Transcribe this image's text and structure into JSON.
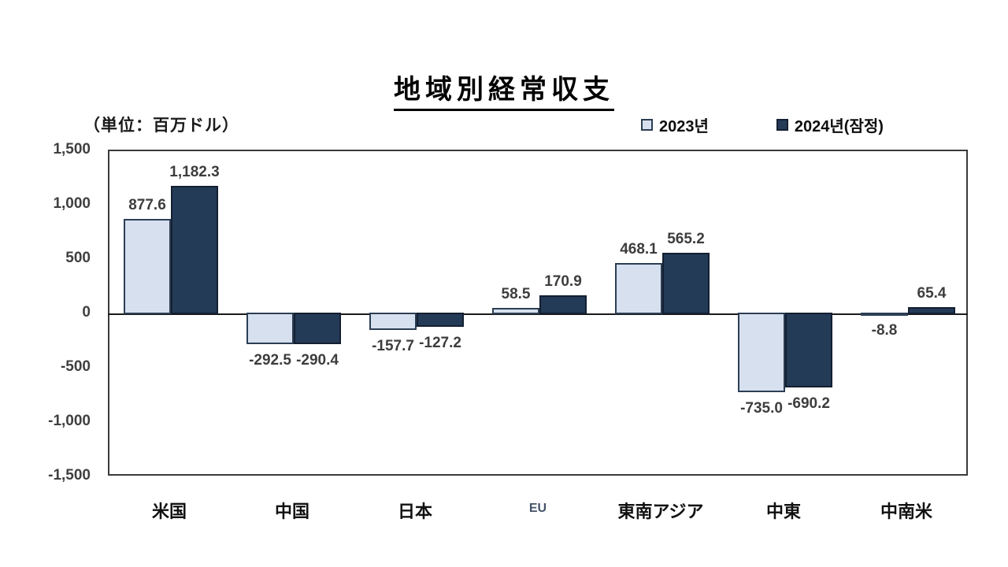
{
  "title": "地域別経常収支",
  "unit_label": "（単位：百万ドル）",
  "legend": {
    "items": [
      {
        "label": "2023년",
        "fill": "#d6e0ee",
        "border": "#2c3e54"
      },
      {
        "label": "2024년(잠정)",
        "fill": "#243b57",
        "border": "#141f31"
      }
    ]
  },
  "chart_data": {
    "type": "bar",
    "title": "地域別経常収支",
    "unit": "百万ドル",
    "categories": [
      "米国",
      "中国",
      "日本",
      "EU",
      "東南アジア",
      "中東",
      "中南米"
    ],
    "muted_category": "EU",
    "series": [
      {
        "name": "2023년",
        "fill": "#d6e0ee",
        "border": "#2c3e54",
        "values": [
          877.6,
          -292.5,
          -157.7,
          58.5,
          468.1,
          -735.0,
          -8.8
        ],
        "value_labels": [
          "877.6",
          "-292.5",
          "-157.7",
          "58.5",
          "468.1",
          "-735.0",
          "-8.8"
        ]
      },
      {
        "name": "2024년(잠정)",
        "fill": "#243b57",
        "border": "#141f31",
        "values": [
          1182.3,
          -290.4,
          -127.2,
          170.9,
          565.2,
          -690.2,
          65.4
        ],
        "value_labels": [
          "1,182.3",
          "-290.4",
          "-127.2",
          "170.9",
          "565.2",
          "-690.2",
          "65.4"
        ]
      }
    ],
    "ylim": [
      -1500,
      1500
    ],
    "ytick_labels": [
      "1,500",
      "1,000",
      "500",
      "0",
      "-500",
      "-1,000",
      "-1,500"
    ],
    "grid": false,
    "legend_position": "top-right"
  }
}
